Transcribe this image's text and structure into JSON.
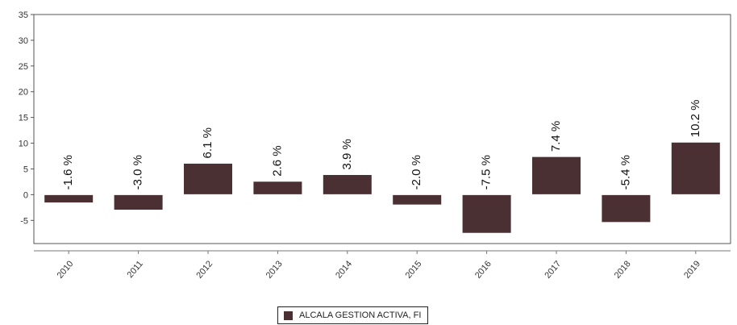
{
  "chart_data": {
    "type": "bar",
    "title": "",
    "xlabel": "",
    "ylabel": "",
    "categories": [
      "2010",
      "2011",
      "2012",
      "2013",
      "2014",
      "2015",
      "2016",
      "2017",
      "2018",
      "2019"
    ],
    "series": [
      {
        "name": "ALCALA GESTION ACTIVA, FI",
        "values": [
          -1.6,
          -3.0,
          6.1,
          2.6,
          3.9,
          -2.0,
          -7.5,
          7.4,
          -5.4,
          10.2
        ],
        "labels": [
          "-1.6 %",
          "-3.0 %",
          "6.1 %",
          "2.6 %",
          "3.9 %",
          "-2.0 %",
          "-7.5 %",
          "7.4 %",
          "-5.4 %",
          "10.2 %"
        ],
        "color": "#4a3033"
      }
    ],
    "ylim": [
      -9.5,
      35
    ],
    "yticks": [
      -5,
      0,
      5,
      10,
      15,
      20,
      25,
      30,
      35
    ],
    "grid": false,
    "legend_position": "bottom-center"
  }
}
